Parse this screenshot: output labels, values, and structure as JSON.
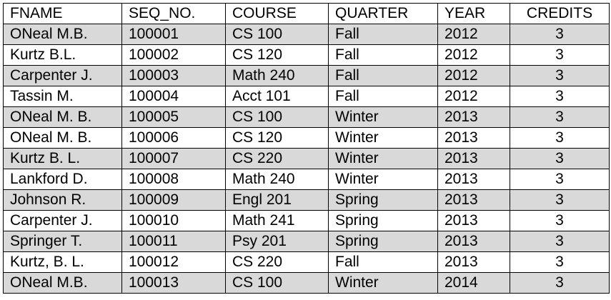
{
  "table": {
    "columns": [
      "FNAME",
      "SEQ_NO.",
      "COURSE",
      "QUARTER",
      "YEAR",
      "CREDITS"
    ],
    "rows": [
      {
        "fname": "ONeal M.B.",
        "seq_no": "100001",
        "course": "CS 100",
        "quarter": "Fall",
        "year": "2012",
        "credits": "3",
        "shaded": true
      },
      {
        "fname": "Kurtz B.L.",
        "seq_no": "100002",
        "course": "CS 120",
        "quarter": "Fall",
        "year": "2012",
        "credits": "3",
        "shaded": false
      },
      {
        "fname": "Carpenter J.",
        "seq_no": "100003",
        "course": "Math 240",
        "quarter": "Fall",
        "year": "2012",
        "credits": "3",
        "shaded": true
      },
      {
        "fname": "Tassin M.",
        "seq_no": "100004",
        "course": "Acct 101",
        "quarter": "Fall",
        "year": "2012",
        "credits": "3",
        "shaded": false
      },
      {
        "fname": "ONeal M. B.",
        "seq_no": "100005",
        "course": "CS 100",
        "quarter": "Winter",
        "year": "2013",
        "credits": "3",
        "shaded": true
      },
      {
        "fname": "ONeal M. B.",
        "seq_no": "100006",
        "course": "CS 120",
        "quarter": "Winter",
        "year": "2013",
        "credits": "3",
        "shaded": false
      },
      {
        "fname": "Kurtz B. L.",
        "seq_no": "100007",
        "course": "CS 220",
        "quarter": "Winter",
        "year": "2013",
        "credits": "3",
        "shaded": true
      },
      {
        "fname": "Lankford D.",
        "seq_no": "100008",
        "course": "Math 240",
        "quarter": "Winter",
        "year": "2013",
        "credits": "3",
        "shaded": false
      },
      {
        "fname": "Johnson R.",
        "seq_no": "100009",
        "course": "Engl 201",
        "quarter": "Spring",
        "year": "2013",
        "credits": "3",
        "shaded": true
      },
      {
        "fname": "Carpenter J.",
        "seq_no": "100010",
        "course": "Math 241",
        "quarter": "Spring",
        "year": "2013",
        "credits": "3",
        "shaded": false
      },
      {
        "fname": "Springer T.",
        "seq_no": "100011",
        "course": "Psy 201",
        "quarter": "Spring",
        "year": "2013",
        "credits": "3",
        "shaded": true
      },
      {
        "fname": "Kurtz, B. L.",
        "seq_no": "100012",
        "course": "CS 220",
        "quarter": "Fall",
        "year": "2013",
        "credits": "3",
        "shaded": false
      },
      {
        "fname": "ONeal M.B.",
        "seq_no": "100013",
        "course": "CS 100",
        "quarter": "Winter",
        "year": "2014",
        "credits": "3",
        "shaded": true
      }
    ]
  },
  "colors": {
    "shaded_row": "#d9d9d9",
    "plain_row": "#ffffff",
    "border": "#000000",
    "text": "#000000"
  }
}
